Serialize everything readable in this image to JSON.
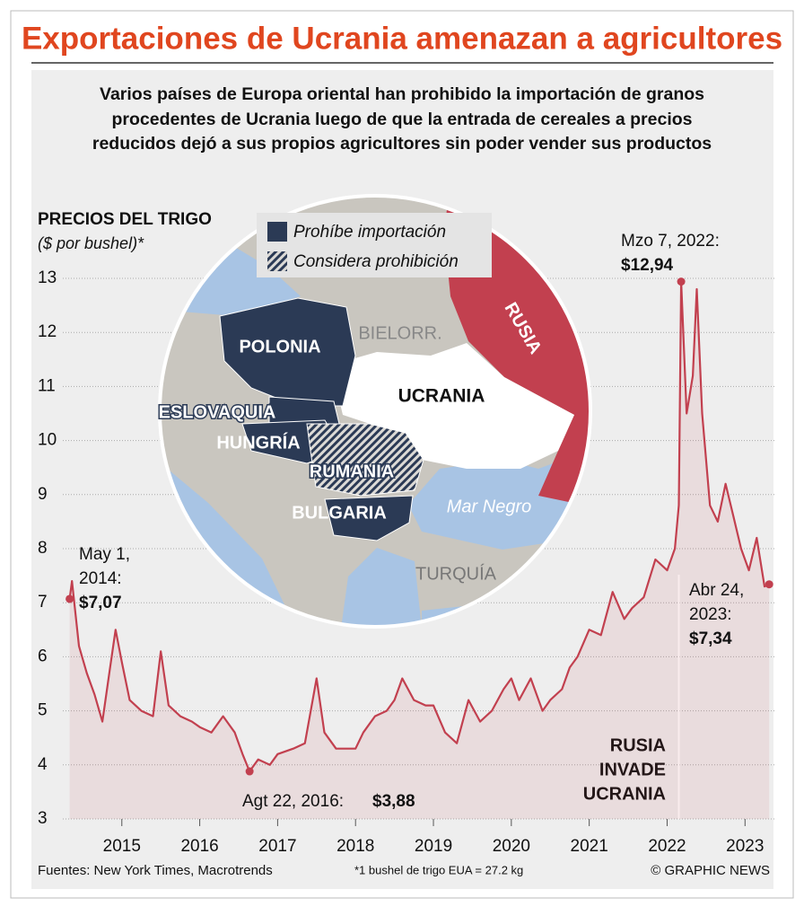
{
  "header": {
    "title": "Exportaciones de Ucrania amenazan a agricultores",
    "subtitle": [
      "Varios países de Europa oriental han prohibido la importación de granos",
      "procedentes de Ucrania luego de que la entrada de cereales a precios",
      "reducidos dejó a sus propios agricultores sin poder vender sus productos"
    ]
  },
  "map": {
    "legend": [
      "Prohíbe importación",
      "Considera prohibición"
    ],
    "labels": {
      "poland": "POLONIA",
      "belarus": "BIELORR.",
      "ukraine": "UCRANIA",
      "russia": "RUSIA",
      "slovakia": "ESLOVAQUIA",
      "hungary": "HUNGRÍA",
      "romania": "RUMANIA",
      "bulgaria": "BULGARIA",
      "sea": "Mar Negro",
      "turkey": "TURQUÍA"
    }
  },
  "chart_data": {
    "type": "line",
    "title": "PRECIOS DEL TRIGO",
    "y_label": "($ por bushel)*",
    "xlim": [
      2014.3,
      2023.4
    ],
    "xticks": [
      2015,
      2016,
      2017,
      2018,
      2019,
      2020,
      2021,
      2022,
      2023
    ],
    "ylim": [
      3,
      13
    ],
    "yticks": [
      3,
      4,
      5,
      6,
      7,
      8,
      9,
      10,
      11,
      12,
      13
    ],
    "grid": true,
    "series": [
      {
        "name": "Precio del trigo",
        "color": "#c2404f",
        "x": [
          2014.33,
          2014.36,
          2014.45,
          2014.55,
          2014.65,
          2014.75,
          2014.85,
          2014.92,
          2015.0,
          2015.1,
          2015.25,
          2015.4,
          2015.5,
          2015.6,
          2015.75,
          2015.9,
          2016.0,
          2016.15,
          2016.3,
          2016.45,
          2016.55,
          2016.64,
          2016.75,
          2016.9,
          2017.0,
          2017.2,
          2017.35,
          2017.5,
          2017.6,
          2017.75,
          2017.9,
          2018.0,
          2018.1,
          2018.25,
          2018.4,
          2018.5,
          2018.6,
          2018.75,
          2018.9,
          2019.0,
          2019.15,
          2019.3,
          2019.45,
          2019.6,
          2019.75,
          2019.9,
          2020.0,
          2020.1,
          2020.25,
          2020.4,
          2020.5,
          2020.65,
          2020.75,
          2020.85,
          2021.0,
          2021.15,
          2021.3,
          2021.45,
          2021.55,
          2021.7,
          2021.85,
          2022.0,
          2022.1,
          2022.15,
          2022.18,
          2022.25,
          2022.33,
          2022.38,
          2022.45,
          2022.55,
          2022.65,
          2022.75,
          2022.85,
          2022.95,
          2023.05,
          2023.15,
          2023.25,
          2023.31
        ],
        "values": [
          7.07,
          7.4,
          6.2,
          5.7,
          5.3,
          4.8,
          5.8,
          6.5,
          5.9,
          5.2,
          5.0,
          4.9,
          6.1,
          5.1,
          4.9,
          4.8,
          4.7,
          4.6,
          4.9,
          4.6,
          4.2,
          3.88,
          4.1,
          4.0,
          4.2,
          4.3,
          4.4,
          5.6,
          4.6,
          4.3,
          4.3,
          4.3,
          4.6,
          4.9,
          5.0,
          5.2,
          5.6,
          5.2,
          5.1,
          5.1,
          4.6,
          4.4,
          5.2,
          4.8,
          5.0,
          5.4,
          5.6,
          5.2,
          5.6,
          5.0,
          5.2,
          5.4,
          5.8,
          6.0,
          6.5,
          6.4,
          7.2,
          6.7,
          6.9,
          7.1,
          7.8,
          7.6,
          8.0,
          8.8,
          12.94,
          10.5,
          11.2,
          12.8,
          10.5,
          8.8,
          8.5,
          9.2,
          8.6,
          8.0,
          7.6,
          8.2,
          7.3,
          7.34
        ]
      }
    ],
    "annotations": [
      {
        "text": [
          "May 1,",
          "2014:"
        ],
        "x": 2014.33,
        "value": 7.07,
        "value_label": "$7,07"
      },
      {
        "text": [
          "Agt 22, 2016:"
        ],
        "x": 2016.64,
        "value": 3.88,
        "value_label": "$3,88"
      },
      {
        "text": [
          "Mzo 7, 2022:"
        ],
        "x": 2022.18,
        "value": 12.94,
        "value_label": "$12,94"
      },
      {
        "text": [
          "Abr 24,",
          "2023:"
        ],
        "x": 2023.31,
        "value": 7.34,
        "value_label": "$7,34"
      }
    ],
    "event": {
      "x": 2022.15,
      "text": [
        "RUSIA",
        "INVADE",
        "UCRANIA"
      ]
    }
  },
  "footer": {
    "source": "Fuentes: New York Times, Macrotrends",
    "note": "*1 bushel de trigo EUA = 27.2 kg",
    "credit": "© GRAPHIC NEWS"
  }
}
